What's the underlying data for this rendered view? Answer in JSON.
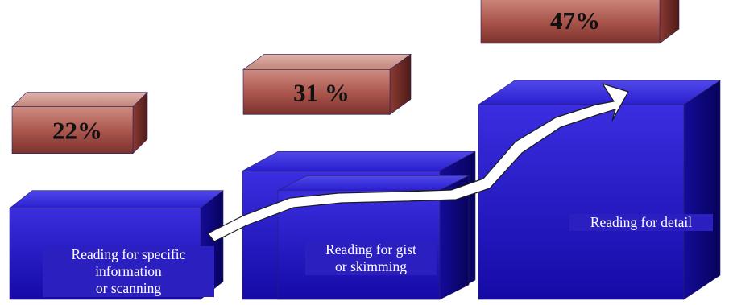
{
  "chart_data": {
    "type": "bar",
    "title": "",
    "xlabel": "",
    "ylabel": "",
    "categories": [
      "Reading for specific\ninformation\nor scanning",
      "Reading for gist\nor skimming",
      "Reading for detail"
    ],
    "values": [
      22,
      31,
      47
    ],
    "value_labels": [
      "22%",
      "31 %",
      "47%"
    ],
    "grid": false,
    "legend": "none",
    "trend_arrow": true
  },
  "colors": {
    "bar_front": "#1a0dbd",
    "bar_dark": "#0c0680",
    "label_box_front": "#c27a70",
    "label_box_dark": "#6e2c26",
    "arrow": "#ffffff"
  }
}
